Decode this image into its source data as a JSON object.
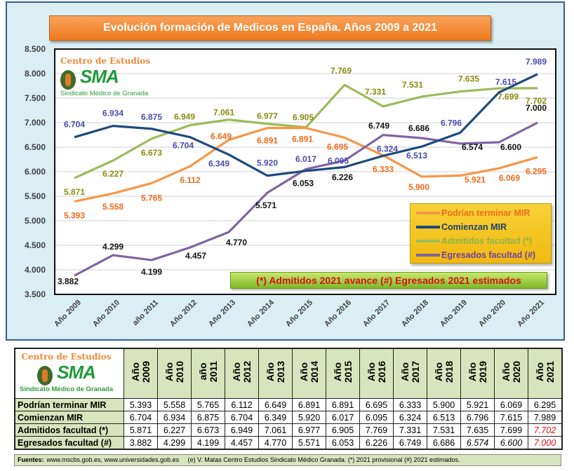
{
  "title": "Evolución formación de Medicos en España. Años 2009 a 2021",
  "logo": {
    "top": "Centro de Estudios",
    "mark": "SMA",
    "sub": "Sindicato Médico de Granada"
  },
  "note": "(*) Admitidos 2021 avance (#) Egresados 2021 estimados",
  "colors": {
    "podrian": "#f79646",
    "comienzan": "#1f497d",
    "admitidos": "#9bbb59",
    "egresados": "#8064a2"
  },
  "chart_data": {
    "type": "line",
    "title": "Evolución formación de Medicos en España. Años 2009 a 2021",
    "categories": [
      "Año 2009",
      "Año 2010",
      "año 2011",
      "Año 2012",
      "Año 2013",
      "Año 2014",
      "Año 2015",
      "Año 2016",
      "Año 2017",
      "Año 2018",
      "Año 2019",
      "Año 2020",
      "Año 2021"
    ],
    "ylim": [
      3500,
      8500
    ],
    "yticks": [
      "3.500",
      "4.000",
      "4.500",
      "5.000",
      "5.500",
      "6.000",
      "6.500",
      "7.000",
      "7.500",
      "8.000",
      "8.500"
    ],
    "grid": true,
    "legend_position": "bottom-right",
    "series": [
      {
        "name": "Podrían terminar MIR",
        "key": "podrian",
        "label_color": "#f26a1b",
        "values": [
          5393,
          5558,
          5765,
          6112,
          6649,
          6891,
          6891,
          6695,
          6333,
          5900,
          5921,
          6069,
          6295
        ],
        "labels": [
          "5.393",
          "5.558",
          "5.765",
          "6.112",
          "6.649",
          "6.891",
          "6.891",
          "6.695",
          "6.333",
          "5.900",
          "5.921",
          "6.069",
          "6.295"
        ]
      },
      {
        "name": "Comienzan MIR",
        "key": "comienzan",
        "label_color": "#4b4bb0",
        "values": [
          6704,
          6934,
          6875,
          6704,
          6349,
          5920,
          6017,
          6095,
          6324,
          6513,
          6796,
          7615,
          7989
        ],
        "labels": [
          "6.704",
          "6.934",
          "6.875",
          "6.704",
          "6.349",
          "5.920",
          "6.017",
          "6.095",
          "6.324",
          "6.513",
          "6.796",
          "7.615",
          "7.989"
        ]
      },
      {
        "name": "Admitidos facultad (*)",
        "key": "admitidos",
        "label_color": "#8b8b10",
        "values": [
          5871,
          6227,
          6673,
          6949,
          7061,
          6977,
          6905,
          7769,
          7331,
          7531,
          7635,
          7699,
          7702
        ],
        "labels": [
          "5.871",
          "6.227",
          "6.673",
          "6.949",
          "7.061",
          "6.977",
          "6.905",
          "7.769",
          "7.331",
          "7.531",
          "7.635",
          "7.699",
          "7.702"
        ]
      },
      {
        "name": "Egresados facultad (#)",
        "key": "egresados",
        "label_color": "#111111",
        "values": [
          3882,
          4299,
          4199,
          4457,
          4770,
          5571,
          6053,
          6226,
          6749,
          6686,
          6574,
          6600,
          7000
        ],
        "labels": [
          "3.882",
          "4.299",
          "4.199",
          "4.457",
          "4.770",
          "5.571",
          "6.053",
          "6.226",
          "6.749",
          "6.686",
          "6.574",
          "6.600",
          "7.000"
        ]
      }
    ]
  },
  "table": {
    "headers": [
      "Año\n2009",
      "Año\n2010",
      "año\n2011",
      "Año\n2012",
      "Año\n2013",
      "Año\n2014",
      "Año\n2015",
      "Año\n2016",
      "Año\n2017",
      "Año\n2018",
      "Año\n2019",
      "Año\n2020",
      "Año\n2021"
    ],
    "rows": [
      {
        "label": "Podrían terminar MIR",
        "cells": [
          "5.393",
          "5.558",
          "5.765",
          "6.112",
          "6.649",
          "6.891",
          "6.891",
          "6.695",
          "6.333",
          "5.900",
          "5.921",
          "6.069",
          "6.295"
        ]
      },
      {
        "label": "Comienzan MIR",
        "cells": [
          "6.704",
          "6.934",
          "6.875",
          "6.704",
          "6.349",
          "5.920",
          "6.017",
          "6.095",
          "6.324",
          "6.513",
          "6.796",
          "7.615",
          "7.989"
        ]
      },
      {
        "label": "Admitidos facultad (*)",
        "cells": [
          "5.871",
          "6.227",
          "6.673",
          "6.949",
          "7.061",
          "6.977",
          "6.905",
          "7.769",
          "7.331",
          "7.531",
          "7.635",
          "7.699",
          "7.702"
        ]
      },
      {
        "label": "Egresados facultad (#)",
        "cells": [
          "3.882",
          "4.299",
          "4.199",
          "4.457",
          "4.770",
          "5.571",
          "6.053",
          "6.226",
          "6.749",
          "6.686",
          "6.574",
          "6.600",
          "7.000"
        ]
      }
    ]
  },
  "footer": {
    "label": "Fuentes:",
    "sources": "www.mscbs.gob.es, www.universidades.gob.es",
    "credit": "(e) V. Matas Centro Estudios Sindicato Médico Granada.  (*) 2021 provisional (#) 2021 estimados."
  }
}
